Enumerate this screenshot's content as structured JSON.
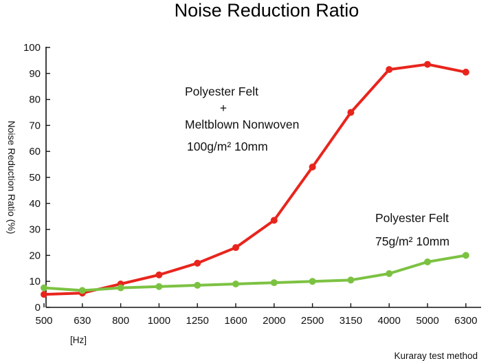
{
  "chart_data": {
    "type": "line",
    "title": "Noise Reduction Ratio",
    "ylabel": "Noise Reduction Ratio  (%)",
    "xunit": "[Hz]",
    "footer": "Kuraray test method",
    "x": [
      "500",
      "630",
      "800",
      "1000",
      "1250",
      "1600",
      "2000",
      "2500",
      "3150",
      "4000",
      "5000",
      "6300"
    ],
    "ylim": [
      0,
      100
    ],
    "yticks": [
      0,
      10,
      20,
      30,
      40,
      50,
      60,
      70,
      80,
      90,
      100
    ],
    "grid": false,
    "series": [
      {
        "name_lines": [
          "Polyester Felt",
          "+",
          "Meltblown Nonwoven",
          "100g/m² 10mm"
        ],
        "color": "#e8251d",
        "values": [
          5,
          5.5,
          9,
          12.5,
          17,
          23,
          33.5,
          54,
          75,
          91.5,
          93.5,
          90.5
        ]
      },
      {
        "name_lines": [
          "Polyester Felt",
          "75g/m² 10mm"
        ],
        "color": "#7cc242",
        "values": [
          7.5,
          6.5,
          7.5,
          8,
          8.5,
          9,
          9.5,
          10,
          10.5,
          13,
          17.5,
          20
        ]
      }
    ]
  }
}
